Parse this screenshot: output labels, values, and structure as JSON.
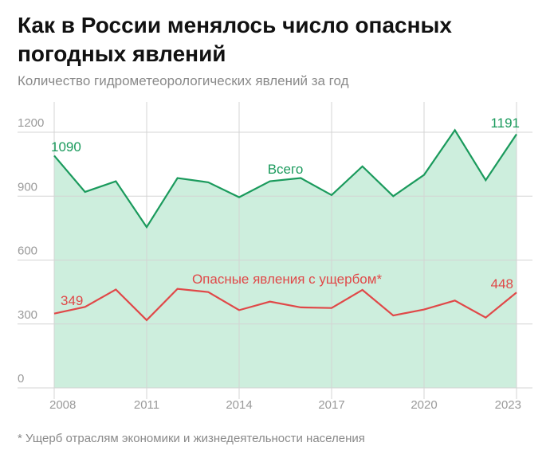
{
  "title": "Как в России менялось число опасных погодных явлений",
  "subtitle": "Количество гидрометеорологических явлений за год",
  "footnote": "* Ущерб отраслям экономики и жизнедеятельности населения",
  "colors": {
    "total_line": "#1a9a5c",
    "total_fill": "#cdeedd",
    "damage_line": "#e04848",
    "grid": "#d4d4d4",
    "axis_text": "#9a9a9a"
  },
  "chart_data": {
    "type": "line",
    "x": [
      2008,
      2009,
      2010,
      2011,
      2012,
      2013,
      2014,
      2015,
      2016,
      2017,
      2018,
      2019,
      2020,
      2021,
      2022,
      2023
    ],
    "x_tick_labels": [
      "2008",
      "2011",
      "2014",
      "2017",
      "2020",
      "2023"
    ],
    "y_tick_labels": [
      "0",
      "300",
      "600",
      "900",
      "1200"
    ],
    "ylim": [
      0,
      1260
    ],
    "grid": true,
    "series": [
      {
        "name": "Всего",
        "values": [
          1090,
          920,
          970,
          755,
          985,
          965,
          895,
          970,
          985,
          905,
          1040,
          900,
          1000,
          1210,
          975,
          1191
        ],
        "area": true,
        "end_labels": [
          "1090",
          "1191"
        ]
      },
      {
        "name": "Опасные явления с ущербом*",
        "values": [
          349,
          380,
          462,
          318,
          465,
          450,
          365,
          405,
          378,
          375,
          460,
          340,
          368,
          410,
          330,
          448
        ],
        "area": false,
        "end_labels": [
          "349",
          "448"
        ]
      }
    ]
  }
}
